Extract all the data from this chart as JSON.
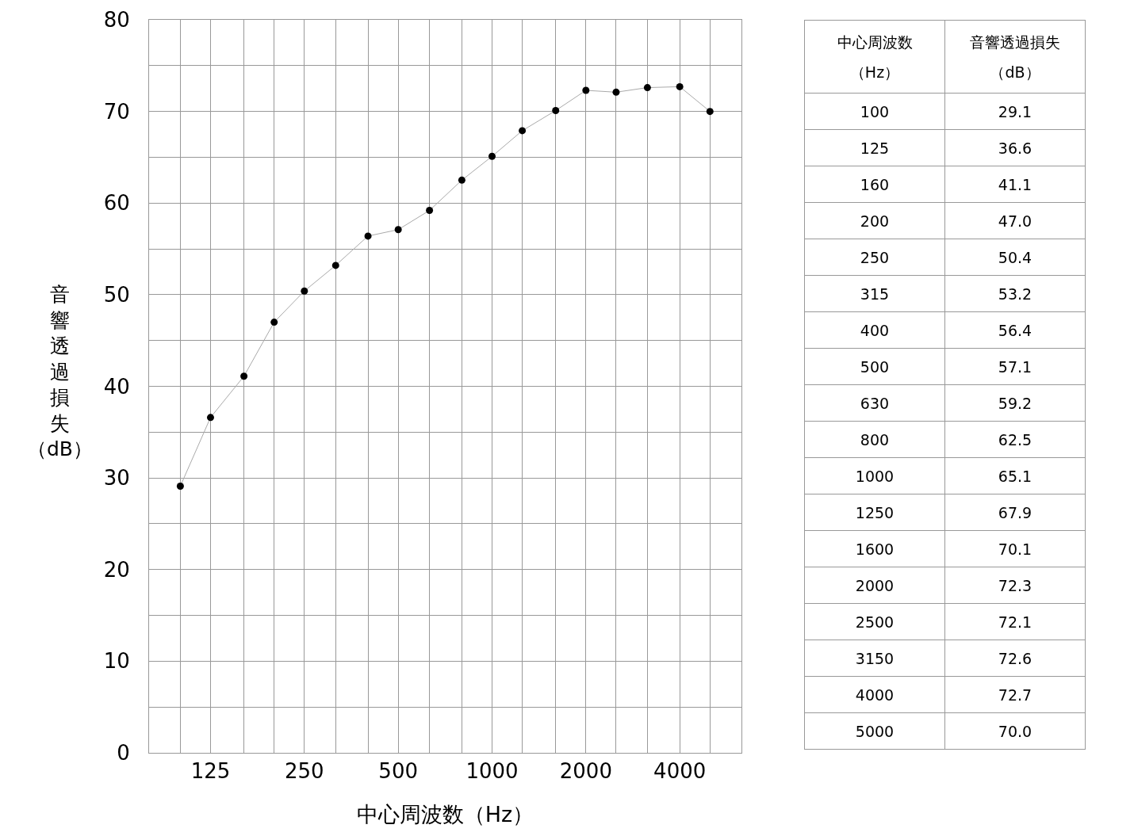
{
  "chart_data": [
    {
      "type": "line",
      "xlabel": "中心周波数（Hz）",
      "ylabel": "音響透過損失（dB）",
      "x": [
        100,
        125,
        160,
        200,
        250,
        315,
        400,
        500,
        630,
        800,
        1000,
        1250,
        1600,
        2000,
        2500,
        3150,
        4000,
        5000
      ],
      "series": [
        {
          "color": "#000000",
          "values": [
            29.1,
            36.6,
            41.1,
            47.0,
            50.4,
            53.2,
            56.4,
            57.1,
            59.2,
            62.5,
            65.1,
            67.9,
            70.1,
            72.3,
            72.1,
            72.6,
            72.7,
            70.0
          ]
        }
      ],
      "log": "x",
      "xlim": [
        79.4,
        6310
      ],
      "xticks": [
        {
          "value": 100,
          "label": null
        },
        125,
        {
          "value": 160,
          "label": null
        },
        {
          "value": 200,
          "label": null
        },
        250,
        {
          "value": 315,
          "label": null
        },
        {
          "value": 400,
          "label": null
        },
        500,
        {
          "value": 630,
          "label": null
        },
        {
          "value": 800,
          "label": null
        },
        1000,
        {
          "value": 1250,
          "label": null
        },
        {
          "value": 1600,
          "label": null
        },
        2000,
        {
          "value": 2500,
          "label": null
        },
        {
          "value": 3150,
          "label": null
        },
        4000,
        {
          "value": 5000,
          "label": null
        }
      ],
      "ylim": [
        0,
        80
      ],
      "yticks": [
        0,
        {
          "value": 5,
          "label": null
        },
        10,
        {
          "value": 15,
          "label": null
        },
        20,
        {
          "value": 25,
          "label": null
        },
        30,
        {
          "value": 35,
          "label": null
        },
        40,
        {
          "value": 45,
          "label": null
        },
        50,
        {
          "value": 55,
          "label": null
        },
        60,
        {
          "value": 65,
          "label": null
        },
        70,
        {
          "value": 75,
          "label": null
        },
        80
      ],
      "grid": true,
      "marker": "circle",
      "line_style": "solid"
    },
    {
      "type": "other",
      "annotations": [
        "中心周波数（Hz）",
        "音響透過損失（dB）",
        "100",
        "29.1",
        "125",
        "36.6",
        "160",
        "41.1",
        "200",
        "47.0",
        "250",
        "50.4",
        "315",
        "53.2",
        "400",
        "56.4",
        "500",
        "57.1",
        "630",
        "59.2",
        "800",
        "62.5",
        "1000",
        "65.1",
        "1250",
        "67.9",
        "1600",
        "70.1",
        "2000",
        "72.3",
        "2500",
        "72.1",
        "3150",
        "72.6",
        "4000",
        "72.7",
        "5000",
        "70.0"
      ]
    }
  ]
}
